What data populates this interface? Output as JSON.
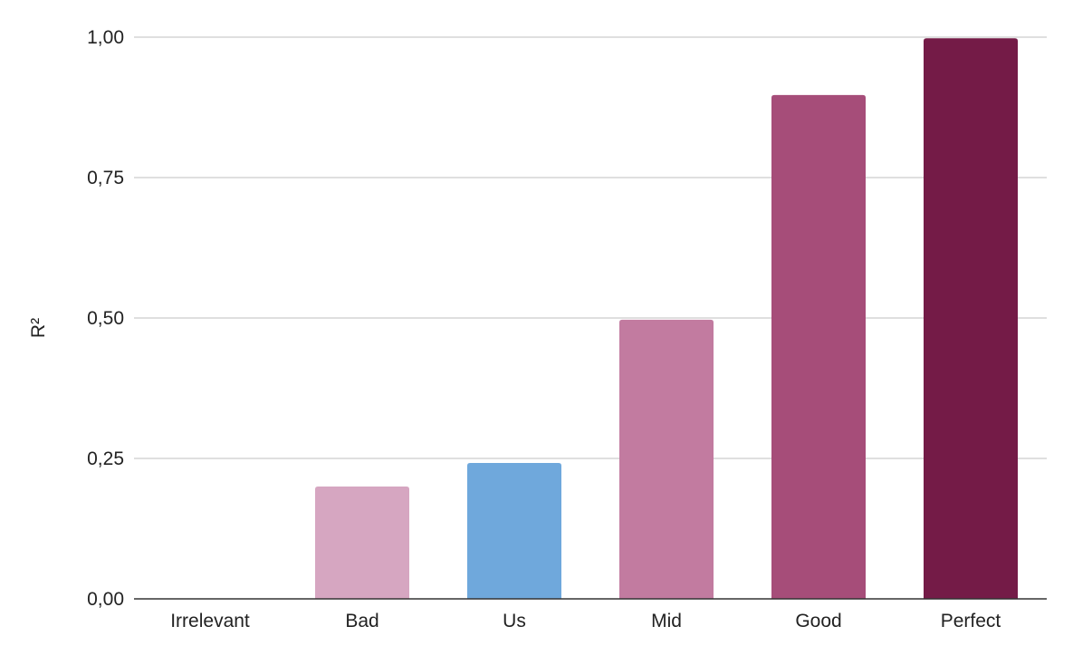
{
  "chart_data": {
    "type": "bar",
    "title": "",
    "xlabel": "",
    "ylabel": "R²",
    "categories": [
      "Irrelevant",
      "Bad",
      "Us",
      "Mid",
      "Good",
      "Perfect"
    ],
    "values": [
      0.0,
      0.2,
      0.242,
      0.497,
      0.897,
      0.998
    ],
    "colors": [
      "#d6a6c1",
      "#d6a6c1",
      "#6fa8dc",
      "#c27ba0",
      "#a64d79",
      "#741b47"
    ],
    "ylim": [
      0,
      1
    ],
    "yticks": [
      0.0,
      0.25,
      0.5,
      0.75,
      1.0
    ],
    "ytick_labels": [
      "0,00",
      "0,25",
      "0,50",
      "0,75",
      "1,00"
    ],
    "grid": true,
    "legend": "none",
    "gridline_color": "#cccccc",
    "baseline_color": "#333333"
  }
}
